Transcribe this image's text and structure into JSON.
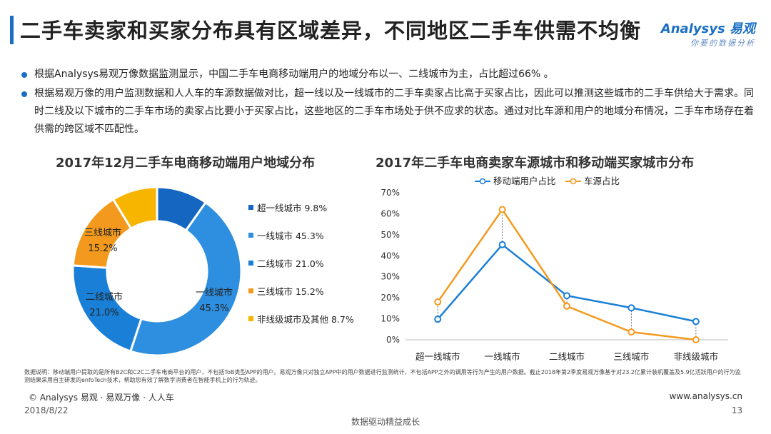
{
  "header": {
    "title": "二手车卖家和买家分布具有区域差异，不同地区二手车供需不均衡",
    "logo_brand": "Analysys 易观",
    "logo_tagline": "你要的数据分析"
  },
  "bullets": [
    "根据Analysys易观万像数据监测显示，中国二手车电商移动端用户的地域分布以一、二线城市为主，占比超过66% 。",
    "根据易观万像的用户监测数据和人人车的车源数据做对比，超一线以及一线城市的二手车卖家占比高于买家占比，因此可以推测这些城市的二手车供给大于需求。同时二线及以下城市的二手车市场的卖家占比要小于买家占比，这些地区的二手车市场处于供不应求的状态。通过对比车源和用户的地域分布情况，二手车市场存在着供需的跨区域不匹配性。"
  ],
  "colors": {
    "accent": "#1a6fc4",
    "blue": "#1a7fd6",
    "orange": "#f39a1e",
    "light_blue": "#2e8fe0",
    "yellow": "#f7b500",
    "dark_blue": "#1566c0"
  },
  "chart_data": [
    {
      "type": "pie",
      "title": "2017年12月二手车电商移动端用户地域分布",
      "slices": [
        {
          "label": "超一线城市",
          "value": 9.8,
          "color": "#1566c0"
        },
        {
          "label": "一线城市",
          "value": 45.3,
          "color": "#2e8fe0"
        },
        {
          "label": "二线城市",
          "value": 21.0,
          "color": "#1a7fd6"
        },
        {
          "label": "三线城市",
          "value": 15.2,
          "color": "#f39a1e"
        },
        {
          "label": "非线级城市及其他",
          "value": 8.7,
          "color": "#f7b500"
        }
      ],
      "legend": [
        "超一线城市 9.8%",
        "一线城市 45.3%",
        "二线城市 21.0%",
        "三线城市 15.2%",
        "非线级城市及其他 8.7%"
      ],
      "inner_labels": [
        {
          "name": "一线城市",
          "pct": "45.3%"
        },
        {
          "name": "二线城市",
          "pct": "21.0%"
        },
        {
          "name": "三线城市",
          "pct": "15.2%"
        }
      ],
      "legend_position": "right"
    },
    {
      "type": "line",
      "title": "2017年二手车电商卖家车源城市和移动端买家城市分布",
      "categories": [
        "超一线城市",
        "一线城市",
        "二线城市",
        "三线城市",
        "非线级城市"
      ],
      "series": [
        {
          "name": "移动端用户占比",
          "values": [
            9.8,
            45.3,
            21.0,
            15.2,
            8.7
          ],
          "color": "#1a7fd6"
        },
        {
          "name": "车源占比",
          "values": [
            18.0,
            62.0,
            16.0,
            3.7,
            0.0
          ],
          "color": "#f39a1e"
        }
      ],
      "ylim": [
        0,
        70
      ],
      "yticks": [
        "0%",
        "10%",
        "20%",
        "30%",
        "40%",
        "50%",
        "60%",
        "70%"
      ],
      "legend_position": "top"
    }
  ],
  "footer": {
    "footnote": "数据说明：移动端用户提取的是所有B2C和C2C二手车电商平台的用户，不包括ToB类型APP的用户。易观万像只对独立APP中的用户数据进行监测统计，不包括APP之外的调用等行为产生的用户数据。截止2018年第2季度易观万像基于对23.2亿累计装机覆盖及5.9亿活跃用户的行为监测结果采用自主研发的enfoTech技术，帮助您有效了解数字消费者在智能手机上的行为轨迹。",
    "copyright": "© Analysys 易观 · 易观万像 · 人人车",
    "website": "www.analysys.cn",
    "date": "2018/8/22",
    "page": "13",
    "slogan": "数据驱动精益成长"
  }
}
